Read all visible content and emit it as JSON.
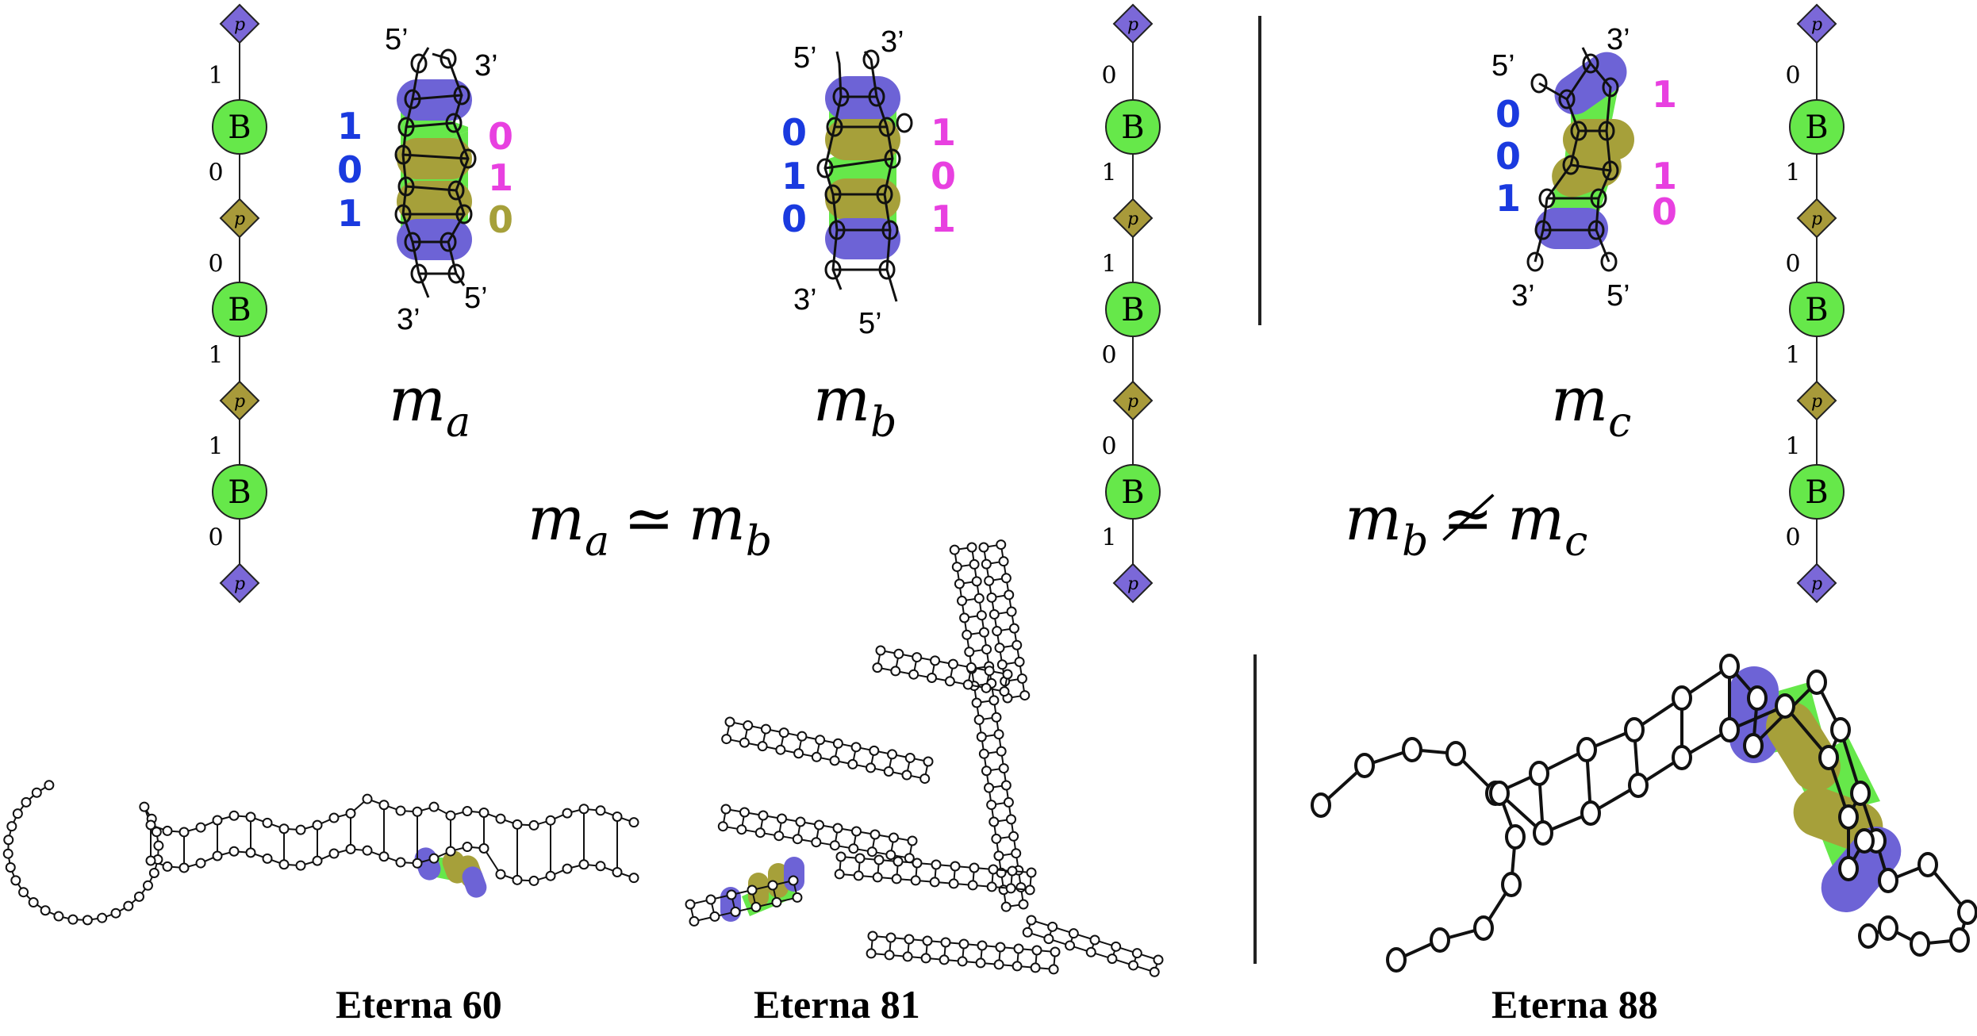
{
  "colors": {
    "phosphate_blue": "#7b68d8",
    "phosphate_olive": "#a89a3a",
    "base_green": "#66e84a",
    "highlight_blue": "#6d63d6",
    "highlight_olive": "#a6a03a",
    "bit_blue": "#1a3adf",
    "bit_magenta": "#e840e0",
    "bit_olive": "#a6a03a"
  },
  "chains": {
    "node_letters": {
      "phosphate": "p",
      "base": "B"
    },
    "left_bits": [
      "1",
      "0",
      "0",
      "1",
      "1",
      "0"
    ],
    "middle_bits": [
      "0",
      "1",
      "1",
      "0",
      "0",
      "1"
    ],
    "right_bits": [
      "0",
      "1",
      "0",
      "1",
      "1",
      "0"
    ]
  },
  "motifs": {
    "ma": {
      "name": "m",
      "sub": "a",
      "end_labels": [
        "5’",
        "3’",
        "3’",
        "5’"
      ],
      "left_bits": [
        "1",
        "0",
        "1"
      ],
      "right_bits": [
        "0",
        "1",
        "0"
      ]
    },
    "mb": {
      "name": "m",
      "sub": "b",
      "end_labels": [
        "5’",
        "3’",
        "3’",
        "5’"
      ],
      "left_bits": [
        "0",
        "1",
        "0"
      ],
      "right_bits": [
        "1",
        "0",
        "1"
      ]
    },
    "mc": {
      "name": "m",
      "sub": "c",
      "end_labels": [
        "3’",
        "5’",
        "3’",
        "5’"
      ],
      "left_bits": [
        "0",
        "0",
        "1"
      ],
      "right_bits": [
        "1",
        "1",
        "0"
      ]
    }
  },
  "relations": {
    "equiv": {
      "lhs": "m",
      "lhs_sub": "a",
      "symbol": "≃",
      "rhs": "m",
      "rhs_sub": "b"
    },
    "nonequiv": {
      "lhs": "m",
      "lhs_sub": "b",
      "symbol": "≄",
      "rhs": "m",
      "rhs_sub": "c"
    }
  },
  "captions": [
    "Eterna 60",
    "Eterna 81",
    "Eterna 88"
  ]
}
